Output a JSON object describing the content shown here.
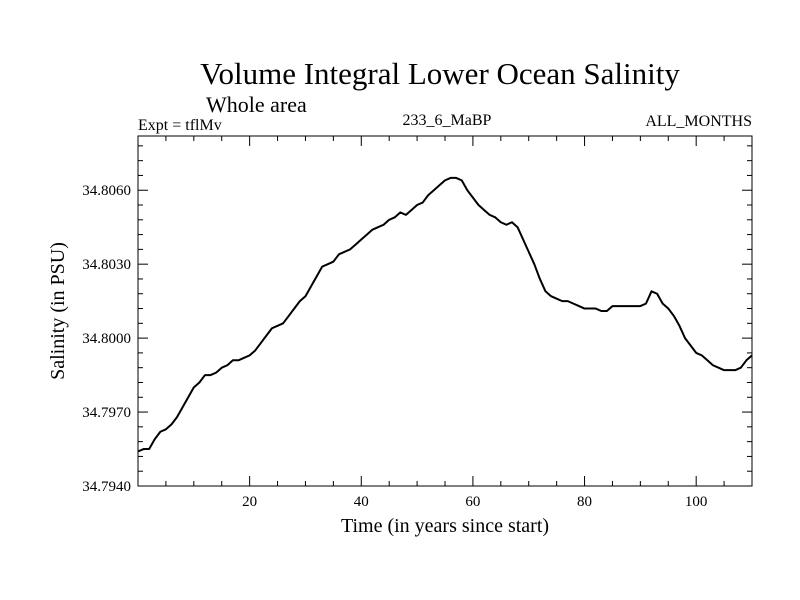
{
  "chart_data": {
    "type": "line",
    "title": "Volume Integral Lower Ocean Salinity",
    "subtitle": "Whole area",
    "annotations": {
      "left": "Expt = tflMv",
      "center": "233_6_MaBP",
      "right": "ALL_MONTHS"
    },
    "xlabel": "Time (in years since start)",
    "ylabel": "Salinity (in PSU)",
    "xlim": [
      0,
      110
    ],
    "ylim": [
      34.794,
      34.8082
    ],
    "x_ticks": [
      20,
      40,
      60,
      80,
      100
    ],
    "x_tick_labels": [
      "20",
      "40",
      "60",
      "80",
      "100"
    ],
    "y_ticks": [
      34.794,
      34.797,
      34.8,
      34.803,
      34.806
    ],
    "y_tick_labels": [
      "34.7940",
      "34.7970",
      "34.8000",
      "34.8030",
      "34.8060"
    ],
    "grid": false,
    "line_color": "#000000",
    "series": [
      {
        "name": "Salinity",
        "x": [
          0,
          1,
          2,
          3,
          4,
          5,
          6,
          7,
          8,
          9,
          10,
          11,
          12,
          13,
          14,
          15,
          16,
          17,
          18,
          19,
          20,
          21,
          22,
          23,
          24,
          25,
          26,
          27,
          28,
          29,
          30,
          31,
          32,
          33,
          34,
          35,
          36,
          37,
          38,
          39,
          40,
          41,
          42,
          43,
          44,
          45,
          46,
          47,
          48,
          49,
          50,
          51,
          52,
          53,
          54,
          55,
          56,
          57,
          58,
          59,
          60,
          61,
          62,
          63,
          64,
          65,
          66,
          67,
          68,
          69,
          70,
          71,
          72,
          73,
          74,
          75,
          76,
          77,
          78,
          79,
          80,
          81,
          82,
          83,
          84,
          85,
          86,
          87,
          88,
          89,
          90,
          91,
          92,
          93,
          94,
          95,
          96,
          97,
          98,
          99,
          100,
          101,
          102,
          103,
          104,
          105,
          106,
          107,
          108,
          109,
          110
        ],
        "values": [
          34.7954,
          34.7955,
          34.7955,
          34.7959,
          34.7962,
          34.7963,
          34.7965,
          34.7968,
          34.7972,
          34.7976,
          34.798,
          34.7982,
          34.7985,
          34.7985,
          34.7986,
          34.7988,
          34.7989,
          34.7991,
          34.7991,
          34.7992,
          34.7993,
          34.7995,
          34.7998,
          34.8001,
          34.8004,
          34.8005,
          34.8006,
          34.8009,
          34.8012,
          34.8015,
          34.8017,
          34.8021,
          34.8025,
          34.8029,
          34.803,
          34.8031,
          34.8034,
          34.8035,
          34.8036,
          34.8038,
          34.804,
          34.8042,
          34.8044,
          34.8045,
          34.8046,
          34.8048,
          34.8049,
          34.8051,
          34.805,
          34.8052,
          34.8054,
          34.8055,
          34.8058,
          34.806,
          34.8062,
          34.8064,
          34.8065,
          34.8065,
          34.8064,
          34.806,
          34.8057,
          34.8054,
          34.8052,
          34.805,
          34.8049,
          34.8047,
          34.8046,
          34.8047,
          34.8045,
          34.804,
          34.8035,
          34.803,
          34.8024,
          34.8019,
          34.8017,
          34.8016,
          34.8015,
          34.8015,
          34.8014,
          34.8013,
          34.8012,
          34.8012,
          34.8012,
          34.8011,
          34.8011,
          34.8013,
          34.8013,
          34.8013,
          34.8013,
          34.8013,
          34.8013,
          34.8014,
          34.8019,
          34.8018,
          34.8014,
          34.8012,
          34.8009,
          34.8005,
          34.8,
          34.7997,
          34.7994,
          34.7993,
          34.7991,
          34.7989,
          34.7988,
          34.7987,
          34.7987,
          34.7987,
          34.7988,
          34.7991,
          34.7993
        ]
      }
    ]
  }
}
